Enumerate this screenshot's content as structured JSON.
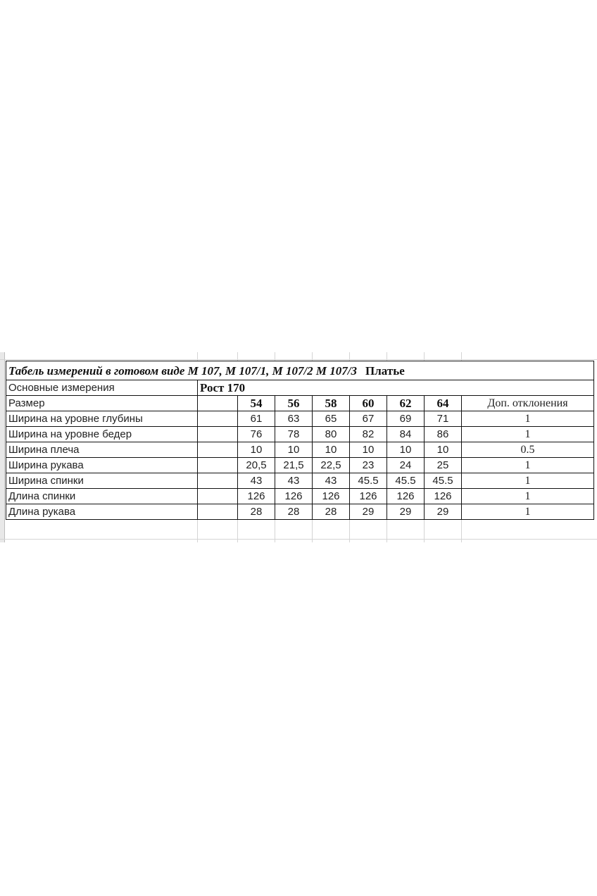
{
  "title": "Табель измерений в готовом виде М 107, М 107/1, М 107/2 М 107/3",
  "title_suffix": "Платье",
  "header_label": "Основные измерения",
  "height_label": "Рост 170",
  "size_label": "Размер",
  "sizes": [
    "54",
    "56",
    "58",
    "60",
    "62",
    "64"
  ],
  "deviation_label": "Доп. отклонения",
  "rows": [
    {
      "name": "Ширина на уровне глубины",
      "values": [
        "61",
        "63",
        "65",
        "67",
        "69",
        "71"
      ],
      "dev": "1"
    },
    {
      "name": "Ширина на уровне бедер",
      "values": [
        "76",
        "78",
        "80",
        "82",
        "84",
        "86"
      ],
      "dev": "1"
    },
    {
      "name": "Ширина плеча",
      "values": [
        "10",
        "10",
        "10",
        "10",
        "10",
        "10"
      ],
      "dev": "0.5"
    },
    {
      "name": "Ширина рукава",
      "values": [
        "20,5",
        "21,5",
        "22,5",
        "23",
        "24",
        "25"
      ],
      "dev": "1"
    },
    {
      "name": "Ширина спинки",
      "values": [
        "43",
        "43",
        "43",
        "45.5",
        "45.5",
        "45.5"
      ],
      "dev": "1"
    },
    {
      "name": "Длина спинки",
      "values": [
        "126",
        "126",
        "126",
        "126",
        "126",
        "126"
      ],
      "dev": "1"
    },
    {
      "name": "Длина рукава",
      "values": [
        "28",
        "28",
        "28",
        "29",
        "29",
        "29"
      ],
      "dev": "1"
    }
  ]
}
